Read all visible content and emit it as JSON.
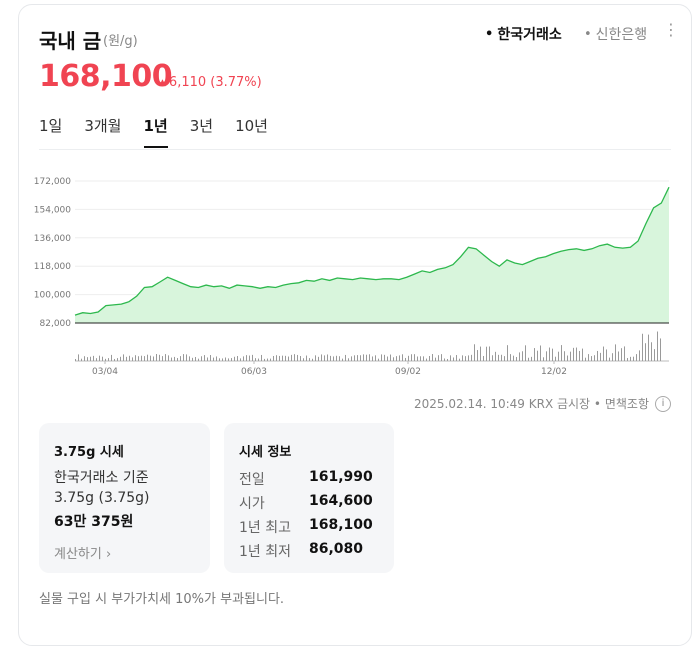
{
  "header": {
    "title": "국내 금",
    "unit": "(원/g)",
    "sources": [
      {
        "label": "한국거래소",
        "active": true
      },
      {
        "label": "신한은행",
        "active": false
      }
    ],
    "more_icon": "more-vertical-icon"
  },
  "quote": {
    "price": "168,100",
    "change": "6,110 (3.77%)",
    "direction": "up",
    "color": "#f04452"
  },
  "tabs": [
    {
      "label": "1일",
      "active": false
    },
    {
      "label": "3개월",
      "active": false
    },
    {
      "label": "1년",
      "active": true
    },
    {
      "label": "3년",
      "active": false
    },
    {
      "label": "10년",
      "active": false
    }
  ],
  "chart_data": {
    "type": "area",
    "y_ticks": [
      "172,000",
      "154,000",
      "136,000",
      "118,000",
      "100,000",
      "82,000"
    ],
    "ylim": [
      82000,
      172000
    ],
    "x_ticks": [
      "03/04",
      "06/03",
      "09/02",
      "12/02"
    ],
    "line_color": "#2db84d",
    "fill_color": "#d8f5dc",
    "grid": true,
    "values": [
      87000,
      88500,
      88000,
      89000,
      93000,
      93500,
      94000,
      95500,
      99000,
      104500,
      105000,
      108000,
      111000,
      109000,
      107000,
      105000,
      104500,
      106000,
      105000,
      105500,
      104000,
      106000,
      105500,
      105000,
      104000,
      105000,
      104500,
      106000,
      107000,
      107500,
      109000,
      108500,
      110000,
      109000,
      110500,
      110000,
      109500,
      110500,
      110000,
      109500,
      110000,
      110000,
      109500,
      111000,
      113000,
      115000,
      114000,
      116000,
      117000,
      119000,
      124000,
      130000,
      129000,
      125000,
      121000,
      118000,
      122000,
      120000,
      119000,
      121000,
      123000,
      124000,
      126000,
      127500,
      128500,
      129000,
      128000,
      129000,
      131000,
      132000,
      130000,
      129500,
      130000,
      134000,
      145000,
      155000,
      158000,
      168100
    ]
  },
  "meta": {
    "timestamp": "2025.02.14. 10:49 KRX 금시장",
    "disclaimer": "면책조항",
    "info_icon": "info-icon"
  },
  "card_375": {
    "title": "3.75g 시세",
    "line1": "한국거래소 기준",
    "line2": "3.75g (3.75g)",
    "line3": "63만 375원",
    "link": "계산하기"
  },
  "card_info": {
    "title": "시세 정보",
    "rows": [
      {
        "label": "전일",
        "value": "161,990"
      },
      {
        "label": "시가",
        "value": "164,600"
      },
      {
        "label": "1년 최고",
        "value": "168,100"
      },
      {
        "label": "1년 최저",
        "value": "86,080"
      }
    ]
  },
  "note": "실물 구입 시 부가가치세 10%가 부과됩니다."
}
